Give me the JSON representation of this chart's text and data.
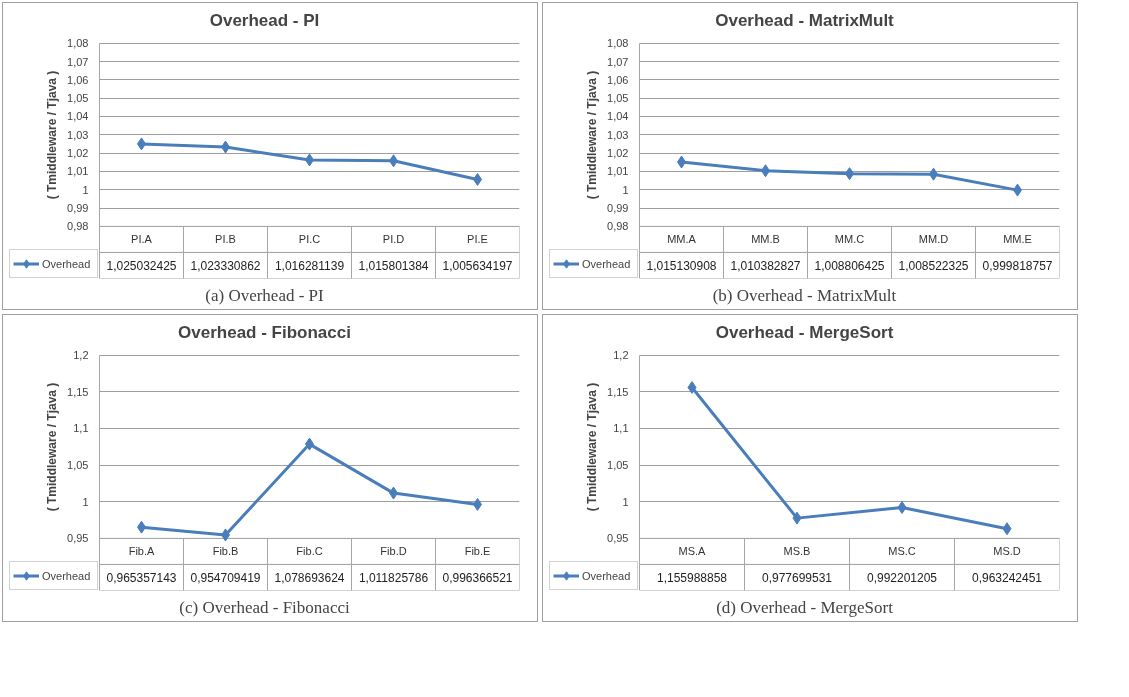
{
  "chart_data": [
    {
      "type": "line",
      "title": "Overhead - PI",
      "ylabel": "( Tmiddleware / Tjava )",
      "categories": [
        "PI.A",
        "PI.B",
        "PI.C",
        "PI.D",
        "PI.E"
      ],
      "series": [
        {
          "name": "Overhead",
          "color": "#4a7ebb",
          "values": [
            1.025032425,
            1.023330862,
            1.016281139,
            1.015801384,
            1.005634197
          ],
          "value_labels": [
            "1,025032425",
            "1,023330862",
            "1,016281139",
            "1,015801384",
            "1,005634197"
          ]
        }
      ],
      "ylim": [
        0.98,
        1.08
      ],
      "yticks": [
        {
          "value": 0.98,
          "label": "0,98"
        },
        {
          "value": 0.99,
          "label": "0,99"
        },
        {
          "value": 1,
          "label": "1"
        },
        {
          "value": 1.01,
          "label": "1,01"
        },
        {
          "value": 1.02,
          "label": "1,02"
        },
        {
          "value": 1.03,
          "label": "1,03"
        },
        {
          "value": 1.04,
          "label": "1,04"
        },
        {
          "value": 1.05,
          "label": "1,05"
        },
        {
          "value": 1.06,
          "label": "1,06"
        },
        {
          "value": 1.07,
          "label": "1,07"
        },
        {
          "value": 1.08,
          "label": "1,08"
        }
      ],
      "grid": "y",
      "marker": "diamond",
      "legend": "bottom",
      "annotations": [
        "(a) Overhead - PI"
      ]
    },
    {
      "type": "line",
      "title": "Overhead - MatrixMult",
      "ylabel": "( Tmiddleware / Tjava )",
      "categories": [
        "MM.A",
        "MM.B",
        "MM.C",
        "MM.D",
        "MM.E"
      ],
      "series": [
        {
          "name": "Overhead",
          "color": "#4a7ebb",
          "values": [
            1.015130908,
            1.010382827,
            1.008806425,
            1.008522325,
            0.999818757
          ],
          "value_labels": [
            "1,015130908",
            "1,010382827",
            "1,008806425",
            "1,008522325",
            "0,999818757"
          ]
        }
      ],
      "ylim": [
        0.98,
        1.08
      ],
      "yticks": [
        {
          "value": 0.98,
          "label": "0,98"
        },
        {
          "value": 0.99,
          "label": "0,99"
        },
        {
          "value": 1,
          "label": "1"
        },
        {
          "value": 1.01,
          "label": "1,01"
        },
        {
          "value": 1.02,
          "label": "1,02"
        },
        {
          "value": 1.03,
          "label": "1,03"
        },
        {
          "value": 1.04,
          "label": "1,04"
        },
        {
          "value": 1.05,
          "label": "1,05"
        },
        {
          "value": 1.06,
          "label": "1,06"
        },
        {
          "value": 1.07,
          "label": "1,07"
        },
        {
          "value": 1.08,
          "label": "1,08"
        }
      ],
      "grid": "y",
      "marker": "diamond",
      "legend": "bottom",
      "annotations": [
        "(b) Overhead - MatrixMult"
      ]
    },
    {
      "type": "line",
      "title": "Overhead - Fibonacci",
      "ylabel": "( Tmiddleware / Tjava )",
      "categories": [
        "Fib.A",
        "Fib.B",
        "Fib.C",
        "Fib.D",
        "Fib.E"
      ],
      "series": [
        {
          "name": "Overhead",
          "color": "#4a7ebb",
          "values": [
            0.965357143,
            0.954709419,
            1.078693624,
            1.011825786,
            0.996366521
          ],
          "value_labels": [
            "0,965357143",
            "0,954709419",
            "1,078693624",
            "1,011825786",
            "0,996366521"
          ]
        }
      ],
      "ylim": [
        0.95,
        1.2
      ],
      "yticks": [
        {
          "value": 0.95,
          "label": "0,95"
        },
        {
          "value": 1,
          "label": "1"
        },
        {
          "value": 1.05,
          "label": "1,05"
        },
        {
          "value": 1.1,
          "label": "1,1"
        },
        {
          "value": 1.15,
          "label": "1,15"
        },
        {
          "value": 1.2,
          "label": "1,2"
        }
      ],
      "grid": "y",
      "marker": "diamond",
      "legend": "bottom",
      "annotations": [
        "(c) Overhead - Fibonacci"
      ]
    },
    {
      "type": "line",
      "title": "Overhead - MergeSort",
      "ylabel": "( Tmiddleware / Tjava )",
      "categories": [
        "MS.A",
        "MS.B",
        "MS.C",
        "MS.D"
      ],
      "series": [
        {
          "name": "Overhead",
          "color": "#4a7ebb",
          "values": [
            1.155988858,
            0.977699531,
            0.992201205,
            0.963242451
          ],
          "value_labels": [
            "1,155988858",
            "0,977699531",
            "0,992201205",
            "0,963242451"
          ]
        }
      ],
      "ylim": [
        0.95,
        1.2
      ],
      "yticks": [
        {
          "value": 0.95,
          "label": "0,95"
        },
        {
          "value": 1,
          "label": "1"
        },
        {
          "value": 1.05,
          "label": "1,05"
        },
        {
          "value": 1.1,
          "label": "1,1"
        },
        {
          "value": 1.15,
          "label": "1,15"
        },
        {
          "value": 1.2,
          "label": "1,2"
        }
      ],
      "grid": "y",
      "marker": "diamond",
      "legend": "bottom",
      "annotations": [
        "(d) Overhead - MergeSort"
      ]
    }
  ]
}
